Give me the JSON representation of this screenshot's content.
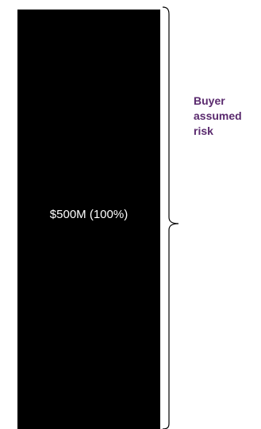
{
  "tranche": {
    "label": "$500M (100%)",
    "fill_color": "#000000",
    "text_color": "#ffffff"
  },
  "brace": {
    "color": "#000000"
  },
  "risk_label": {
    "text": "Buyer\nassumed\nrisk",
    "color": "#5a2a6e"
  }
}
